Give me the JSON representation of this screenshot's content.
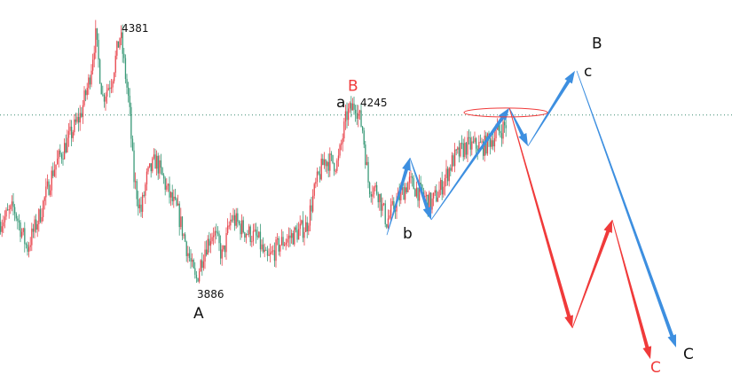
{
  "chart_data": {
    "type": "candlestick",
    "title": "",
    "xlabel": "",
    "ylabel": "",
    "grid": false,
    "colors": {
      "up": "#e8474f",
      "down": "#3a9a78",
      "projection_blue": "#3d8fe0",
      "projection_red": "#f03a3a",
      "reference_line": "#3a8a70"
    },
    "price_path": {
      "bar": [
        0,
        15,
        30,
        45,
        60,
        75,
        90,
        100,
        107,
        115,
        125,
        135,
        145,
        150,
        158,
        165,
        175,
        190,
        200,
        215,
        220,
        230,
        240,
        250,
        260,
        275,
        290,
        300,
        315,
        330,
        345,
        355,
        365,
        380,
        390,
        400,
        408,
        415,
        425,
        435,
        445,
        460,
        470,
        485,
        495,
        510,
        525,
        545,
        560,
        570
      ],
      "close": [
        4011,
        4038,
        3959,
        4029,
        4116,
        4168,
        4221,
        4290,
        4378,
        4256,
        4290,
        4381,
        4238,
        4099,
        4029,
        4099,
        4133,
        4064,
        4029,
        3924,
        3893,
        3959,
        3994,
        3942,
        4020,
        3994,
        3977,
        3933,
        3968,
        3985,
        4003,
        4081,
        4133,
        4125,
        4221,
        4243,
        4194,
        4081,
        4073,
        4011,
        4046,
        4090,
        4073,
        4046,
        4073,
        4133,
        4160,
        4160,
        4186,
        4203
      ]
    },
    "reference_level": 4221,
    "price_labels": [
      {
        "text": "4381",
        "bar": 135,
        "price": 4381
      },
      {
        "text": "3886",
        "bar": 219,
        "price": 3886
      },
      {
        "text": "4245",
        "bar": 400,
        "price": 4245
      }
    ],
    "wave_labels": [
      {
        "text": "A",
        "bar": 218,
        "price": 3870,
        "color": "#111111"
      },
      {
        "text": "a",
        "bar": 383,
        "price": 4236,
        "color": "#111111"
      },
      {
        "text": "B",
        "bar": 398,
        "price": 4262,
        "color": "#f03a3a"
      },
      {
        "text": "b",
        "bar": 454,
        "price": 3978,
        "color": "#111111"
      },
      {
        "text": "B",
        "bar": 667,
        "price": 4342,
        "color": "#111111"
      },
      {
        "text": "c",
        "bar": 662,
        "price": 4308,
        "color": "#111111"
      },
      {
        "text": "C",
        "bar": 770,
        "price": 3741,
        "color": "#111111"
      },
      {
        "text": "C",
        "bar": 733,
        "price": 3715,
        "color": "#f03a3a"
      }
    ],
    "projections": [
      {
        "color": "blue",
        "points": [
          [
            436,
            3985
          ],
          [
            462,
            4137
          ],
          [
            486,
            4015
          ],
          [
            574,
            4235
          ],
          [
            595,
            4160
          ],
          [
            648,
            4308
          ]
        ]
      },
      {
        "color": "blue",
        "points": [
          [
            650,
            4308
          ],
          [
            762,
            3764
          ]
        ]
      },
      {
        "color": "red",
        "points": [
          [
            574,
            4235
          ],
          [
            645,
            3802
          ],
          [
            690,
            4015
          ],
          [
            733,
            3741
          ]
        ]
      }
    ],
    "highlight_ellipse": {
      "bar": 570,
      "price": 4226
    }
  }
}
